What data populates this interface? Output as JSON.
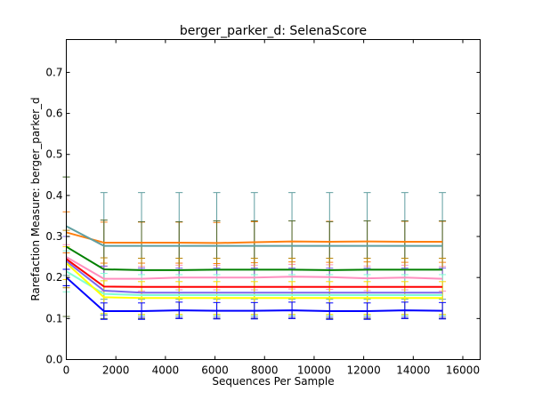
{
  "chart_data": {
    "type": "line",
    "title": "berger_parker_d: SelenaScore",
    "xlabel": "Sequences Per Sample",
    "ylabel": "Rarefaction Measure: berger_parker_d",
    "xlim": [
      0,
      16700
    ],
    "ylim": [
      0,
      0.78
    ],
    "xticks": [
      0,
      2000,
      4000,
      6000,
      8000,
      10000,
      12000,
      14000,
      16000
    ],
    "yticks": [
      0.0,
      0.1,
      0.2,
      0.3,
      0.4,
      0.5,
      0.6,
      0.7
    ],
    "x": [
      1,
      1518,
      3036,
      4553,
      6071,
      7589,
      9106,
      10624,
      12142,
      13660,
      15177
    ],
    "grid": false,
    "series": [
      {
        "color": "#ff7f0e",
        "values": [
          0.31,
          0.285,
          0.285,
          0.285,
          0.284,
          0.286,
          0.288,
          0.287,
          0.288,
          0.287,
          0.287
        ],
        "err_lo": [
          0.05,
          0.05,
          0.05,
          0.05,
          0.05,
          0.05,
          0.05,
          0.05,
          0.05,
          0.05,
          0.05
        ],
        "err_hi": [
          0.05,
          0.05,
          0.05,
          0.05,
          0.05,
          0.05,
          0.05,
          0.05,
          0.05,
          0.05,
          0.05
        ],
        "err_color": "#ff7f0e"
      },
      {
        "color": "#5f9ea0",
        "values": [
          0.325,
          0.277,
          0.277,
          0.277,
          0.277,
          0.277,
          0.277,
          0.277,
          0.277,
          0.277,
          0.277
        ],
        "err_lo": [
          0.12,
          0.13,
          0.13,
          0.13,
          0.13,
          0.13,
          0.13,
          0.13,
          0.13,
          0.13,
          0.13
        ],
        "err_hi": [
          0.12,
          0.13,
          0.13,
          0.13,
          0.13,
          0.13,
          0.13,
          0.13,
          0.13,
          0.13,
          0.13
        ],
        "err_color": "#5f9ea0"
      },
      {
        "color": "#008000",
        "values": [
          0.275,
          0.22,
          0.218,
          0.218,
          0.219,
          0.219,
          0.219,
          0.218,
          0.219,
          0.219,
          0.219
        ],
        "err_lo": [
          0.17,
          0.12,
          0.118,
          0.118,
          0.119,
          0.119,
          0.119,
          0.118,
          0.119,
          0.119,
          0.119
        ],
        "err_hi": [
          0.17,
          0.12,
          0.118,
          0.118,
          0.119,
          0.119,
          0.119,
          0.118,
          0.119,
          0.119,
          0.119
        ],
        "err_color": "#556b2f"
      },
      {
        "color": "#ff8fbf",
        "values": [
          0.25,
          0.197,
          0.197,
          0.2,
          0.2,
          0.2,
          0.202,
          0.201,
          0.198,
          0.2,
          0.197
        ],
        "err_lo": [
          0.03,
          0.03,
          0.03,
          0.03,
          0.03,
          0.03,
          0.03,
          0.03,
          0.03,
          0.03,
          0.03
        ],
        "err_hi": [
          0.03,
          0.03,
          0.03,
          0.03,
          0.03,
          0.03,
          0.03,
          0.03,
          0.03,
          0.03,
          0.03
        ],
        "err_color": "#ff8fbf"
      },
      {
        "color": "#ff0000",
        "values": [
          0.245,
          0.178,
          0.177,
          0.177,
          0.177,
          0.177,
          0.177,
          0.177,
          0.177,
          0.177,
          0.177
        ],
        "err_lo": [
          0.07,
          0.07,
          0.07,
          0.07,
          0.07,
          0.07,
          0.07,
          0.07,
          0.07,
          0.07,
          0.07
        ],
        "err_hi": [
          0.07,
          0.07,
          0.07,
          0.07,
          0.07,
          0.07,
          0.07,
          0.07,
          0.07,
          0.07,
          0.07
        ],
        "err_color": "#b8860b"
      },
      {
        "color": "#7b68ee",
        "values": [
          0.24,
          0.168,
          0.163,
          0.163,
          0.163,
          0.163,
          0.163,
          0.163,
          0.163,
          0.163,
          0.163
        ],
        "err_lo": [
          0.06,
          0.06,
          0.06,
          0.06,
          0.06,
          0.06,
          0.06,
          0.06,
          0.06,
          0.06,
          0.06
        ],
        "err_hi": [
          0.06,
          0.06,
          0.06,
          0.06,
          0.06,
          0.06,
          0.06,
          0.06,
          0.06,
          0.06,
          0.06
        ],
        "err_color": "#7b68ee"
      },
      {
        "color": "#7fffd4",
        "values": [
          0.215,
          0.16,
          0.157,
          0.157,
          0.157,
          0.157,
          0.157,
          0.157,
          0.157,
          0.157,
          0.157
        ],
        "err_lo": [
          0.05,
          0.05,
          0.05,
          0.05,
          0.05,
          0.05,
          0.05,
          0.05,
          0.05,
          0.05,
          0.05
        ],
        "err_hi": [
          0.05,
          0.05,
          0.05,
          0.05,
          0.05,
          0.05,
          0.05,
          0.05,
          0.05,
          0.05,
          0.05
        ],
        "err_color": "#7fffd4"
      },
      {
        "color": "#ffff00",
        "values": [
          0.235,
          0.152,
          0.15,
          0.15,
          0.15,
          0.15,
          0.15,
          0.15,
          0.15,
          0.15,
          0.15
        ],
        "err_lo": [
          0.04,
          0.04,
          0.04,
          0.04,
          0.04,
          0.04,
          0.04,
          0.04,
          0.04,
          0.04,
          0.04
        ],
        "err_hi": [
          0.04,
          0.04,
          0.04,
          0.04,
          0.04,
          0.04,
          0.04,
          0.04,
          0.04,
          0.04,
          0.04
        ],
        "err_color": "#ffd700"
      },
      {
        "color": "#0000ff",
        "values": [
          0.2,
          0.118,
          0.118,
          0.12,
          0.119,
          0.119,
          0.12,
          0.118,
          0.118,
          0.12,
          0.119
        ],
        "err_lo": [
          0.02,
          0.02,
          0.02,
          0.02,
          0.02,
          0.02,
          0.02,
          0.02,
          0.02,
          0.02,
          0.02
        ],
        "err_hi": [
          0.02,
          0.02,
          0.02,
          0.02,
          0.02,
          0.02,
          0.02,
          0.02,
          0.02,
          0.02,
          0.02
        ],
        "err_color": "#0000ff"
      }
    ]
  }
}
